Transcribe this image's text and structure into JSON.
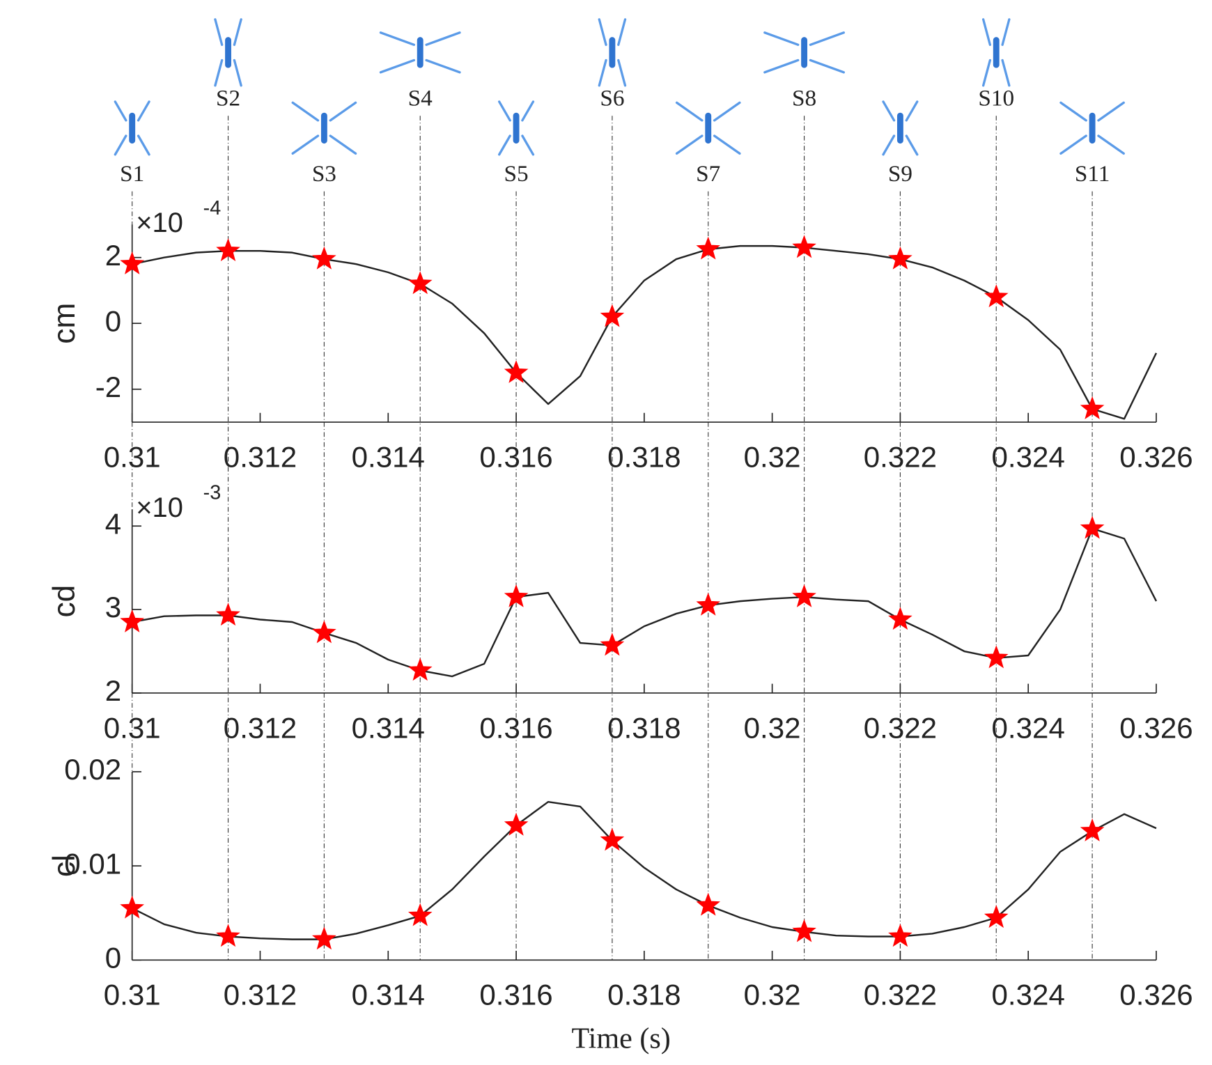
{
  "stages": [
    {
      "label": "S1",
      "time": 0.31
    },
    {
      "label": "S2",
      "time": 0.3115
    },
    {
      "label": "S3",
      "time": 0.313
    },
    {
      "label": "S4",
      "time": 0.3145
    },
    {
      "label": "S5",
      "time": 0.316
    },
    {
      "label": "S6",
      "time": 0.3175
    },
    {
      "label": "S7",
      "time": 0.319
    },
    {
      "label": "S8",
      "time": 0.3205
    },
    {
      "label": "S9",
      "time": 0.322
    },
    {
      "label": "S10",
      "time": 0.3235
    },
    {
      "label": "S11",
      "time": 0.325
    }
  ],
  "chart_data": [
    {
      "type": "line",
      "ylabel": "cm",
      "exponent": {
        "base": "×10",
        "power": "-4"
      },
      "xlim": [
        0.31,
        0.326
      ],
      "xticks": [
        0.31,
        0.312,
        0.314,
        0.316,
        0.318,
        0.32,
        0.322,
        0.324,
        0.326
      ],
      "ylim": [
        -3,
        3
      ],
      "yticks": [
        -2,
        0,
        2
      ],
      "series": [
        {
          "color": "#222222",
          "x": [
            0.31,
            0.3105,
            0.311,
            0.3115,
            0.312,
            0.3125,
            0.313,
            0.3135,
            0.314,
            0.3145,
            0.315,
            0.3155,
            0.316,
            0.3165,
            0.317,
            0.3175,
            0.318,
            0.3185,
            0.319,
            0.3195,
            0.32,
            0.3205,
            0.321,
            0.3215,
            0.322,
            0.3225,
            0.323,
            0.3235,
            0.324,
            0.3245,
            0.325,
            0.3255,
            0.326
          ],
          "values": [
            1.8,
            2.0,
            2.15,
            2.2,
            2.2,
            2.15,
            1.95,
            1.8,
            1.55,
            1.2,
            0.6,
            -0.3,
            -1.5,
            -2.45,
            -1.6,
            0.2,
            1.3,
            1.95,
            2.25,
            2.35,
            2.35,
            2.3,
            2.2,
            2.1,
            1.95,
            1.7,
            1.3,
            0.8,
            0.1,
            -0.8,
            -2.6,
            -2.9,
            -0.9
          ]
        },
        {
          "color": "#ff0000",
          "marker": "star",
          "x": [
            0.31,
            0.3115,
            0.313,
            0.3145,
            0.316,
            0.3175,
            0.319,
            0.3205,
            0.322,
            0.3235,
            0.325
          ],
          "values": [
            1.8,
            2.2,
            1.95,
            1.2,
            -1.5,
            0.2,
            2.25,
            2.3,
            1.95,
            0.8,
            -2.6
          ]
        }
      ]
    },
    {
      "type": "line",
      "ylabel": "cd",
      "exponent": {
        "base": "×10",
        "power": "-3"
      },
      "xlim": [
        0.31,
        0.326
      ],
      "xticks": [
        0.31,
        0.312,
        0.314,
        0.316,
        0.318,
        0.32,
        0.322,
        0.324,
        0.326
      ],
      "ylim": [
        2,
        4.2
      ],
      "yticks": [
        2,
        3,
        4
      ],
      "series": [
        {
          "color": "#222222",
          "x": [
            0.31,
            0.3105,
            0.311,
            0.3115,
            0.312,
            0.3125,
            0.313,
            0.3135,
            0.314,
            0.3145,
            0.315,
            0.3155,
            0.316,
            0.3165,
            0.317,
            0.3175,
            0.318,
            0.3185,
            0.319,
            0.3195,
            0.32,
            0.3205,
            0.321,
            0.3215,
            0.322,
            0.3225,
            0.323,
            0.3235,
            0.324,
            0.3245,
            0.325,
            0.3255,
            0.326
          ],
          "values": [
            2.85,
            2.92,
            2.93,
            2.93,
            2.88,
            2.85,
            2.72,
            2.6,
            2.4,
            2.27,
            2.2,
            2.35,
            3.15,
            3.2,
            2.6,
            2.57,
            2.8,
            2.95,
            3.05,
            3.1,
            3.13,
            3.15,
            3.12,
            3.1,
            2.88,
            2.7,
            2.5,
            2.42,
            2.45,
            3.0,
            3.97,
            3.85,
            3.1
          ]
        },
        {
          "color": "#ff0000",
          "marker": "star",
          "x": [
            0.31,
            0.3115,
            0.313,
            0.3145,
            0.316,
            0.3175,
            0.319,
            0.3205,
            0.322,
            0.3235,
            0.325
          ],
          "values": [
            2.85,
            2.93,
            2.72,
            2.27,
            3.15,
            2.57,
            3.05,
            3.15,
            2.88,
            2.42,
            3.97
          ]
        }
      ]
    },
    {
      "type": "line",
      "ylabel": "cl",
      "xlabel": "Time (s)",
      "xlim": [
        0.31,
        0.326
      ],
      "xticks": [
        0.31,
        0.312,
        0.314,
        0.316,
        0.318,
        0.32,
        0.322,
        0.324,
        0.326
      ],
      "ylim": [
        0,
        0.02
      ],
      "yticks": [
        0,
        0.01,
        0.02
      ],
      "series": [
        {
          "color": "#222222",
          "x": [
            0.31,
            0.3105,
            0.311,
            0.3115,
            0.312,
            0.3125,
            0.313,
            0.3135,
            0.314,
            0.3145,
            0.315,
            0.3155,
            0.316,
            0.3165,
            0.317,
            0.3175,
            0.318,
            0.3185,
            0.319,
            0.3195,
            0.32,
            0.3205,
            0.321,
            0.3215,
            0.322,
            0.3225,
            0.323,
            0.3235,
            0.324,
            0.3245,
            0.325,
            0.3255,
            0.326
          ],
          "values": [
            0.0055,
            0.0038,
            0.0029,
            0.0025,
            0.0023,
            0.0022,
            0.0022,
            0.0028,
            0.0037,
            0.0047,
            0.0075,
            0.011,
            0.0143,
            0.0168,
            0.0163,
            0.0127,
            0.0098,
            0.0075,
            0.0058,
            0.0045,
            0.0035,
            0.003,
            0.0026,
            0.0025,
            0.0025,
            0.0028,
            0.0035,
            0.0045,
            0.0075,
            0.0115,
            0.0137,
            0.0155,
            0.014
          ]
        },
        {
          "color": "#ff0000",
          "marker": "star",
          "x": [
            0.31,
            0.3115,
            0.313,
            0.3145,
            0.316,
            0.3175,
            0.319,
            0.3205,
            0.322,
            0.3235,
            0.325
          ],
          "values": [
            0.0055,
            0.0025,
            0.0022,
            0.0047,
            0.0143,
            0.0127,
            0.0058,
            0.003,
            0.0025,
            0.0045,
            0.0137
          ]
        }
      ]
    }
  ]
}
